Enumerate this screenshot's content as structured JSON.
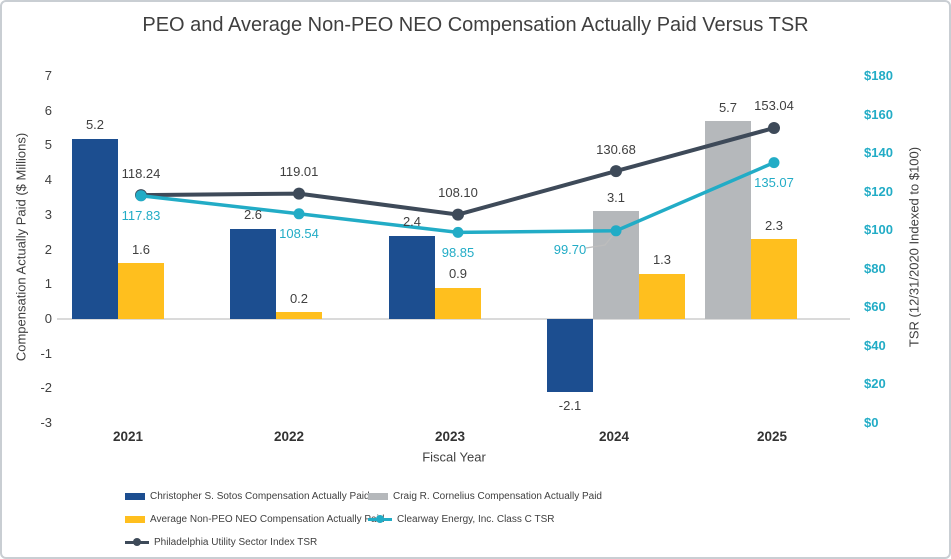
{
  "title": "PEO and Average Non-PEO NEO Compensation Actually Paid Versus TSR",
  "chart_data": {
    "type": "combo-bar-line",
    "title": "PEO and Average Non-PEO NEO Compensation Actually Paid Versus TSR",
    "x_axis": {
      "title": "Fiscal Year",
      "categories": [
        "2021",
        "2022",
        "2023",
        "2024",
        "2025"
      ]
    },
    "left_axis": {
      "title": "Compensation Actually Paid ($ Millions)",
      "min": -3,
      "max": 7,
      "tick_values": [
        7,
        6,
        5,
        4,
        3,
        2,
        1,
        0,
        -1,
        -2,
        -3
      ],
      "tick_labels": [
        "7",
        "6",
        "5",
        "4",
        "3",
        "2",
        "1",
        "0",
        "-1",
        "-2",
        "-3"
      ]
    },
    "right_axis": {
      "title": "TSR (12/31/2020 Indexed to $100)",
      "min": 0,
      "max": 180,
      "tick_values": [
        180,
        160,
        140,
        120,
        100,
        80,
        60,
        40,
        20,
        0
      ],
      "tick_labels": [
        "$180",
        "$160",
        "$140",
        "$120",
        "$100",
        "$80",
        "$60",
        "$40",
        "$20",
        "$0"
      ],
      "color": "#22acc6"
    },
    "bar_series": [
      {
        "key": "sotos",
        "name": "Christopher S. Sotos Compensation Actually Paid",
        "color": "#1c4e90",
        "values": [
          5.2,
          2.6,
          2.4,
          -2.1,
          null
        ],
        "labels": [
          "5.2",
          "2.6",
          "2.4",
          "-2.1",
          null
        ]
      },
      {
        "key": "cornelius",
        "name": "Craig R. Cornelius Compensation Actually Paid",
        "color": "#b5b8bb",
        "values": [
          null,
          null,
          null,
          3.1,
          5.7
        ],
        "labels": [
          null,
          null,
          null,
          "3.1",
          "5.7"
        ]
      },
      {
        "key": "avg-neo",
        "name": "Average Non-PEO NEO Compensation Actually Paid",
        "color": "#ffbf1e",
        "values": [
          1.6,
          0.2,
          0.9,
          1.3,
          2.3
        ],
        "labels": [
          "1.6",
          "0.2",
          "0.9",
          "1.3",
          "2.3"
        ]
      }
    ],
    "line_series": [
      {
        "key": "phl-utility-index-tsr",
        "name": "Philadelphia Utility Sector Index TSR",
        "color": "#3e4a59",
        "label_color": "#404040",
        "label_side": "above",
        "values": [
          118.24,
          119.01,
          108.1,
          130.68,
          153.04
        ],
        "labels": [
          "118.24",
          "119.01",
          "108.10",
          "130.68",
          "153.04"
        ]
      },
      {
        "key": "clearway-class-c-tsr",
        "name": "Clearway Energy, Inc. Class C TSR",
        "color": "#22acc6",
        "label_color": "#22acc6",
        "label_side": "below",
        "values": [
          117.83,
          108.54,
          98.85,
          99.7,
          135.07
        ],
        "labels": [
          "117.83",
          "108.54",
          "98.85",
          "99.70",
          "135.07"
        ]
      }
    ]
  },
  "legend": {
    "items": [
      {
        "label": "Christopher S. Sotos Compensation Actually Paid",
        "swatch": "bar",
        "color": "#1c4e90"
      },
      {
        "label": "Craig R. Cornelius Compensation Actually Paid",
        "swatch": "bar",
        "color": "#b5b8bb"
      },
      {
        "label": "Average Non-PEO NEO Compensation Actually Paid",
        "swatch": "bar",
        "color": "#ffbf1e"
      },
      {
        "label": "Clearway Energy, Inc. Class C TSR",
        "swatch": "line",
        "color": "#22acc6"
      },
      {
        "label": "Philadelphia Utility Sector Index TSR",
        "swatch": "line",
        "color": "#3e4a59"
      }
    ]
  }
}
